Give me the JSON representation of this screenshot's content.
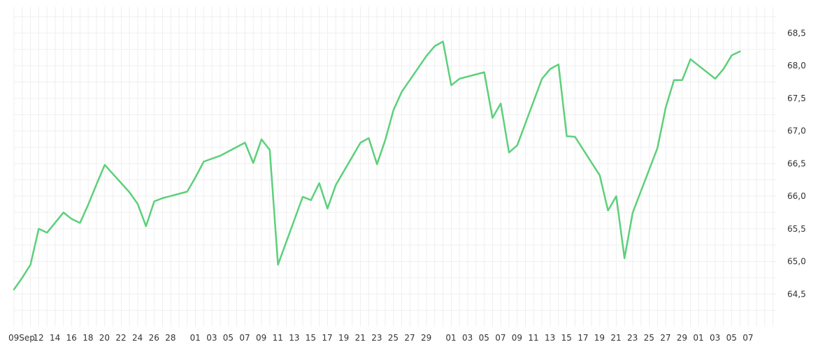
{
  "chart_data": {
    "type": "line",
    "title": "",
    "xlabel": "",
    "ylabel": "",
    "ylim": [
      64.0,
      68.9
    ],
    "xlim": [
      0,
      92
    ],
    "grid": true,
    "legend": "none",
    "line_color": "#5cd07a",
    "y_ticks": [
      "64,5",
      "65,0",
      "65,5",
      "66,0",
      "66,5",
      "67,0",
      "67,5",
      "68,0",
      "68,5"
    ],
    "y_tick_values": [
      64.5,
      65.0,
      65.5,
      66.0,
      66.5,
      67.0,
      67.5,
      68.0,
      68.5
    ],
    "x_ticks": [
      {
        "d": 0,
        "label": "09Sep"
      },
      {
        "d": 3,
        "label": "12"
      },
      {
        "d": 5,
        "label": "14"
      },
      {
        "d": 7,
        "label": "16"
      },
      {
        "d": 9,
        "label": "18"
      },
      {
        "d": 11,
        "label": "20"
      },
      {
        "d": 13,
        "label": "22"
      },
      {
        "d": 15,
        "label": "24"
      },
      {
        "d": 17,
        "label": "26"
      },
      {
        "d": 19,
        "label": "28"
      },
      {
        "d": 22,
        "label": "01"
      },
      {
        "d": 24,
        "label": "03"
      },
      {
        "d": 26,
        "label": "05"
      },
      {
        "d": 28,
        "label": "07"
      },
      {
        "d": 30,
        "label": "09"
      },
      {
        "d": 32,
        "label": "11"
      },
      {
        "d": 34,
        "label": "13"
      },
      {
        "d": 36,
        "label": "15"
      },
      {
        "d": 38,
        "label": "17"
      },
      {
        "d": 40,
        "label": "19"
      },
      {
        "d": 42,
        "label": "21"
      },
      {
        "d": 44,
        "label": "23"
      },
      {
        "d": 46,
        "label": "25"
      },
      {
        "d": 48,
        "label": "27"
      },
      {
        "d": 50,
        "label": "29"
      },
      {
        "d": 53,
        "label": "01"
      },
      {
        "d": 55,
        "label": "03"
      },
      {
        "d": 57,
        "label": "05"
      },
      {
        "d": 59,
        "label": "07"
      },
      {
        "d": 61,
        "label": "09"
      },
      {
        "d": 63,
        "label": "11"
      },
      {
        "d": 65,
        "label": "13"
      },
      {
        "d": 67,
        "label": "15"
      },
      {
        "d": 69,
        "label": "17"
      },
      {
        "d": 71,
        "label": "19"
      },
      {
        "d": 73,
        "label": "21"
      },
      {
        "d": 75,
        "label": "23"
      },
      {
        "d": 77,
        "label": "25"
      },
      {
        "d": 79,
        "label": "27"
      },
      {
        "d": 81,
        "label": "29"
      },
      {
        "d": 83,
        "label": "01"
      },
      {
        "d": 85,
        "label": "03"
      },
      {
        "d": 87,
        "label": "05"
      },
      {
        "d": 89,
        "label": "07"
      }
    ],
    "series": [
      {
        "x": [
          0,
          1,
          2,
          3,
          4,
          6,
          7,
          8,
          9,
          10,
          11,
          14,
          15,
          16,
          17,
          18,
          21,
          22,
          23,
          25,
          28,
          29,
          30,
          31,
          32,
          35,
          36,
          37,
          38,
          39,
          42,
          43,
          44,
          45,
          46,
          47,
          50,
          51,
          52,
          53,
          54,
          57,
          58,
          59,
          60,
          61,
          64,
          65,
          66,
          67,
          68,
          71,
          72,
          73,
          74,
          75,
          78,
          79,
          80,
          81,
          82,
          85,
          86,
          87,
          88
        ],
        "y": [
          64.57,
          64.75,
          64.95,
          65.5,
          65.44,
          65.75,
          65.65,
          65.59,
          65.87,
          66.18,
          66.48,
          66.06,
          65.88,
          65.54,
          65.92,
          65.97,
          66.07,
          66.29,
          66.53,
          66.62,
          66.82,
          66.51,
          66.87,
          66.71,
          64.95,
          65.99,
          65.94,
          66.2,
          65.81,
          66.17,
          66.82,
          66.89,
          66.49,
          66.86,
          67.32,
          67.6,
          68.15,
          68.3,
          68.37,
          67.7,
          67.8,
          67.9,
          67.2,
          67.42,
          66.67,
          66.78,
          67.8,
          67.95,
          68.02,
          66.92,
          66.91,
          66.32,
          65.78,
          66.0,
          65.05,
          65.75,
          66.74,
          67.36,
          67.78,
          67.78,
          68.1,
          67.8,
          67.95,
          68.16,
          68.22
        ]
      }
    ]
  }
}
